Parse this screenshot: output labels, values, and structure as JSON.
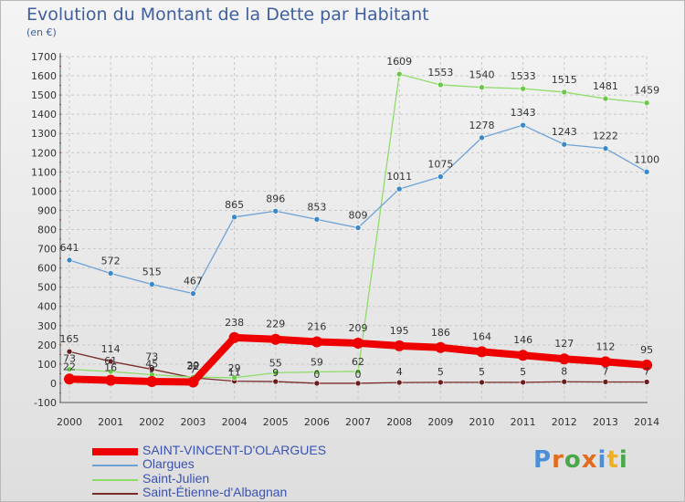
{
  "header": {
    "title": "Evolution du Montant de la Dette par Habitant",
    "subtitle": "(en €)"
  },
  "logo": {
    "text": "Proxiti",
    "colors": [
      "#4a8fd8",
      "#e36b1c",
      "#4aa84a",
      "#e36b1c",
      "#4a8fd8",
      "#f0b020",
      "#4aa84a"
    ]
  },
  "chart_data": {
    "type": "line",
    "title": "Evolution du Montant de la Dette par Habitant",
    "ylabel": "(en €)",
    "xlabel": "",
    "x": [
      "2000",
      "2001",
      "2002",
      "2003",
      "2004",
      "2005",
      "2006",
      "2007",
      "2008",
      "2009",
      "2010",
      "2011",
      "2012",
      "2013",
      "2014"
    ],
    "ylim": [
      -100,
      1700
    ],
    "yticks": [
      -100,
      0,
      100,
      200,
      300,
      400,
      500,
      600,
      700,
      800,
      900,
      1000,
      1100,
      1200,
      1300,
      1400,
      1500,
      1600,
      1700
    ],
    "grid": true,
    "legend": "bottom-left",
    "series": [
      {
        "name": "SAINT-VINCENT-D'OLARGUES",
        "color": "#ee0000",
        "marker": "#ee0000",
        "width": 8,
        "values": [
          22,
          16,
          9,
          7,
          238,
          229,
          216,
          209,
          195,
          186,
          164,
          146,
          127,
          112,
          95
        ],
        "labels": [
          "22",
          "16",
          "9",
          "7",
          "238",
          "229",
          "216",
          "209",
          "195",
          "186",
          "164",
          "146",
          "127",
          "112",
          "95"
        ]
      },
      {
        "name": "Olargues",
        "color": "#6ea2d6",
        "marker": "#3a88c8",
        "width": 1.3,
        "values": [
          641,
          572,
          515,
          467,
          865,
          896,
          853,
          809,
          1011,
          1075,
          1278,
          1343,
          1243,
          1222,
          1100
        ],
        "labels": [
          "641",
          "572",
          "515",
          "467",
          "865",
          "896",
          "853",
          "809",
          "1011",
          "1075",
          "1278",
          "1343",
          "1243",
          "1222",
          "1100"
        ]
      },
      {
        "name": "Saint-Julien",
        "color": "#8fdc6a",
        "marker": "#6cc84a",
        "width": 1.3,
        "values": [
          73,
          61,
          45,
          32,
          29,
          55,
          59,
          62,
          1609,
          1553,
          1540,
          1533,
          1515,
          1481,
          1459
        ],
        "labels": [
          "73",
          "61",
          "45",
          "32",
          "29",
          "55",
          "59",
          "62",
          "1609",
          "1553",
          "1540",
          "1533",
          "1515",
          "1481",
          "1459"
        ]
      },
      {
        "name": "Saint-Étienne-d'Albagnan",
        "color": "#7a2a2a",
        "marker": "#6a1f1f",
        "width": 1.3,
        "values": [
          165,
          114,
          73,
          29,
          11,
          9,
          0,
          0,
          4,
          5,
          5,
          5,
          8,
          7,
          7
        ],
        "labels": [
          "165",
          "114",
          "73",
          "29",
          "11",
          "9",
          "0",
          "0",
          "4",
          "5",
          "5",
          "5",
          "8",
          "7",
          "7"
        ]
      }
    ]
  }
}
